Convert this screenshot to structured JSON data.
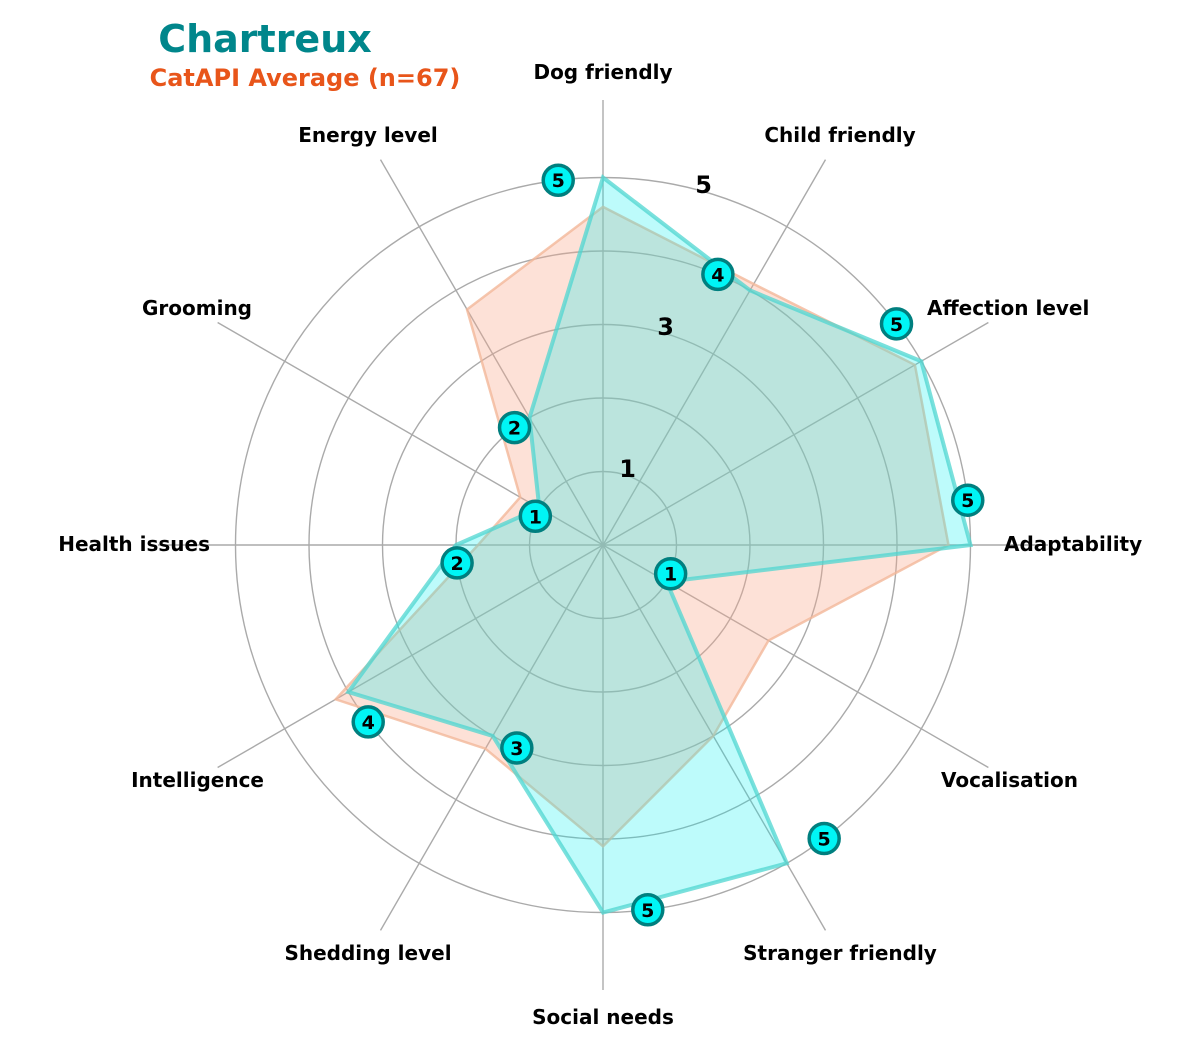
{
  "title": "Chartreux",
  "subtitle": "CatAPI Average (n=67)",
  "colors": {
    "title": "#00868b",
    "subtitle": "#e8551a",
    "breed_fill": "#00f0f0",
    "breed_line": "#4fd6d0",
    "average_fill": "#f9a98b",
    "average_line": "#f2b89a",
    "marker_fill": "#00f5f5",
    "marker_edge": "#007f7f",
    "grid": "#aaaaaa"
  },
  "chart_data": {
    "type": "radar",
    "title": "Chartreux",
    "subtitle": "CatAPI Average (n=67)",
    "categories": [
      "Adaptability",
      "Affection level",
      "Child friendly",
      "Dog friendly",
      "Energy level",
      "Grooming",
      "Health issues",
      "Intelligence",
      "Shedding level",
      "Social needs",
      "Stranger friendly",
      "Vocalisation"
    ],
    "series": [
      {
        "values": [
          5,
          5,
          4,
          5,
          2,
          1,
          2,
          4,
          3,
          5,
          5,
          1
        ]
      },
      {
        "values": [
          4.7,
          4.9,
          4.1,
          4.6,
          3.7,
          1.3,
          1.7,
          4.2,
          3.2,
          4.1,
          3.0,
          2.6
        ]
      }
    ],
    "rlim": [
      0,
      5
    ],
    "radial_ticks": [
      1,
      2,
      3,
      4,
      5
    ],
    "radial_tick_labels": [
      "1",
      "3",
      "5"
    ],
    "grid": true
  }
}
